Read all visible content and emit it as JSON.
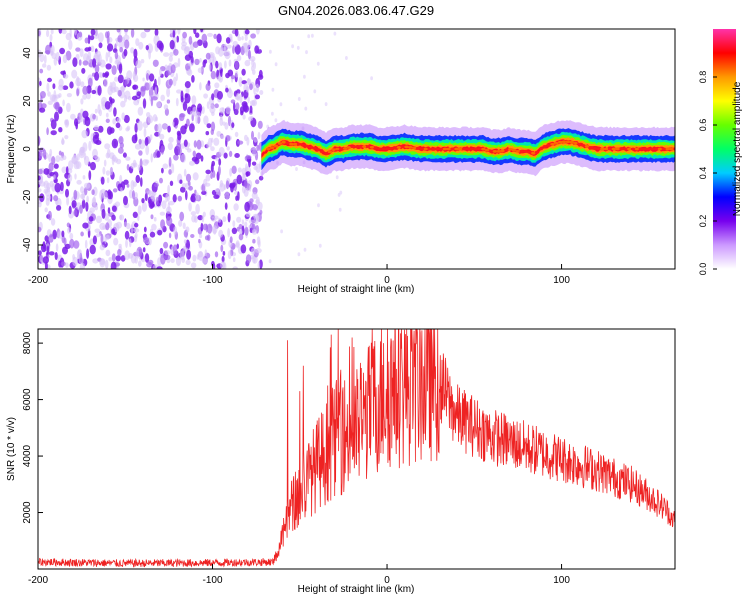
{
  "title": "GN04.2026.083.06.47.G29",
  "colors": {
    "snr_line": "#ee2222",
    "background": "#ffffff",
    "axis": "#000000"
  },
  "chart_data": [
    {
      "type": "heatmap",
      "xlabel": "Height of straight line (km)",
      "ylabel": "Frequency (Hz)",
      "xlim": [
        -200,
        165
      ],
      "ylim": [
        -50,
        50
      ],
      "xticks": [
        -200,
        -100,
        0,
        100
      ],
      "yticks": [
        -40,
        -20,
        0,
        20,
        40
      ],
      "grid": false,
      "colorbar": {
        "label": "Normalized spectral amplitude",
        "range": [
          0,
          1
        ],
        "ticks": [
          "0.0",
          "0.2",
          "0.4",
          "0.6",
          "0.8"
        ],
        "colormap": [
          "#ffffff",
          "#cc99ff",
          "#7700ee",
          "#0000ff",
          "#00ccff",
          "#00ff66",
          "#66ff00",
          "#ffff00",
          "#ff9900",
          "#ff0000",
          "#ff33aa"
        ]
      },
      "noise_region_x": [
        -200,
        -72
      ],
      "signal_start_x": -72,
      "signal_track": {
        "x": [
          -72,
          -68,
          -64,
          -60,
          -55,
          -50,
          -45,
          -40,
          -35,
          -30,
          -25,
          -20,
          -15,
          -10,
          -5,
          0,
          10,
          20,
          30,
          40,
          50,
          55,
          60,
          65,
          70,
          75,
          80,
          85,
          88,
          90,
          95,
          100,
          105,
          110,
          115,
          120,
          130,
          140,
          150,
          160,
          165
        ],
        "y": [
          -3,
          0,
          1,
          3,
          2,
          2,
          1,
          0,
          -2,
          0,
          0,
          1,
          1,
          1,
          0,
          0,
          1,
          0,
          0,
          0,
          0,
          0,
          -1,
          -1,
          0,
          -1,
          -1,
          -2,
          0,
          1,
          2,
          3,
          3,
          2,
          1,
          0,
          0,
          0,
          0,
          0,
          0
        ]
      }
    },
    {
      "type": "line",
      "xlabel": "Height of straight line (km)",
      "ylabel": "SNR (10 * v/v)",
      "xlim": [
        -200,
        165
      ],
      "ylim": [
        0,
        8500
      ],
      "xticks": [
        -200,
        -100,
        0,
        100
      ],
      "yticks": [
        2000,
        4000,
        6000,
        8000
      ],
      "grid": false,
      "envelope": {
        "x": [
          -200,
          -150,
          -100,
          -65,
          -62,
          -58,
          -55,
          -50,
          -45,
          -40,
          -35,
          -30,
          -25,
          -20,
          -10,
          -5,
          0,
          10,
          20,
          28,
          30,
          40,
          60,
          80,
          100,
          120,
          140,
          150,
          160,
          165
        ],
        "y": [
          250,
          200,
          220,
          250,
          700,
          1500,
          2200,
          2600,
          3200,
          3700,
          4100,
          4600,
          4800,
          4700,
          5600,
          6000,
          6300,
          6500,
          6700,
          6900,
          6600,
          5400,
          4700,
          4300,
          3900,
          3500,
          3000,
          2600,
          2100,
          1700
        ]
      },
      "spikes": {
        "x": [
          -57,
          -50,
          -48,
          -34,
          -32,
          -28,
          -27,
          -20,
          -8,
          -2,
          8,
          14
        ],
        "y": [
          8100,
          6300,
          7200,
          6500,
          8300,
          8500,
          6000,
          8200,
          7800,
          8000,
          7800,
          7700
        ]
      }
    }
  ]
}
